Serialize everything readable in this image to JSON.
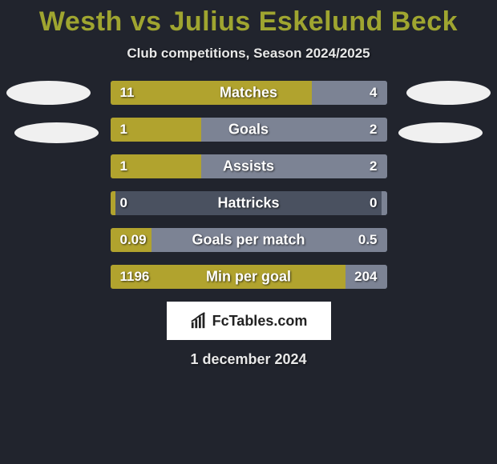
{
  "title": "Westh vs Julius Eskelund Beck",
  "subtitle": "Club competitions, Season 2024/2025",
  "date": "1 december 2024",
  "logo_text": "FcTables.com",
  "colors": {
    "background": "#21242d",
    "title": "#9fa530",
    "bar_left": "#b1a32e",
    "bar_right": "#7c8394",
    "bar_bg": "#4a5160",
    "text": "#ffffff",
    "logo_bg": "#ffffff",
    "logo_text": "#222222"
  },
  "stats": [
    {
      "label": "Matches",
      "left_val": "11",
      "right_val": "4",
      "left_pct": 73,
      "right_pct": 27
    },
    {
      "label": "Goals",
      "left_val": "1",
      "right_val": "2",
      "left_pct": 33,
      "right_pct": 67
    },
    {
      "label": "Assists",
      "left_val": "1",
      "right_val": "2",
      "left_pct": 33,
      "right_pct": 67
    },
    {
      "label": "Hattricks",
      "left_val": "0",
      "right_val": "0",
      "left_pct": 2,
      "right_pct": 2
    },
    {
      "label": "Goals per match",
      "left_val": "0.09",
      "right_val": "0.5",
      "left_pct": 15,
      "right_pct": 85
    },
    {
      "label": "Min per goal",
      "left_val": "1196",
      "right_val": "204",
      "left_pct": 85,
      "right_pct": 15
    }
  ]
}
